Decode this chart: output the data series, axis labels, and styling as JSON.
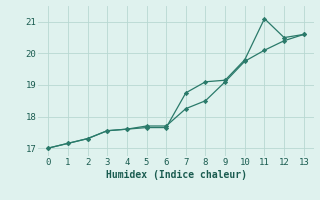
{
  "xlabel": "Humidex (Indice chaleur)",
  "line1_x": [
    0,
    1,
    2,
    3,
    4,
    5,
    6,
    7,
    8,
    9,
    10,
    11,
    12,
    13
  ],
  "line1_y": [
    17.0,
    17.15,
    17.3,
    17.55,
    17.6,
    17.65,
    17.65,
    18.75,
    19.1,
    19.15,
    19.8,
    21.1,
    20.5,
    20.6
  ],
  "line2_x": [
    0,
    1,
    2,
    3,
    4,
    5,
    6,
    7,
    8,
    9,
    10,
    11,
    12,
    13
  ],
  "line2_y": [
    17.0,
    17.15,
    17.3,
    17.55,
    17.6,
    17.7,
    17.7,
    18.25,
    18.5,
    19.1,
    19.75,
    20.1,
    20.4,
    20.6
  ],
  "line_color": "#2a7a6a",
  "bg_color": "#dff2ee",
  "grid_color": "#b8d8d2",
  "ylim": [
    16.75,
    21.5
  ],
  "xlim": [
    -0.5,
    13.5
  ],
  "yticks": [
    17,
    18,
    19,
    20,
    21
  ],
  "xticks": [
    0,
    1,
    2,
    3,
    4,
    5,
    6,
    7,
    8,
    9,
    10,
    11,
    12,
    13
  ]
}
